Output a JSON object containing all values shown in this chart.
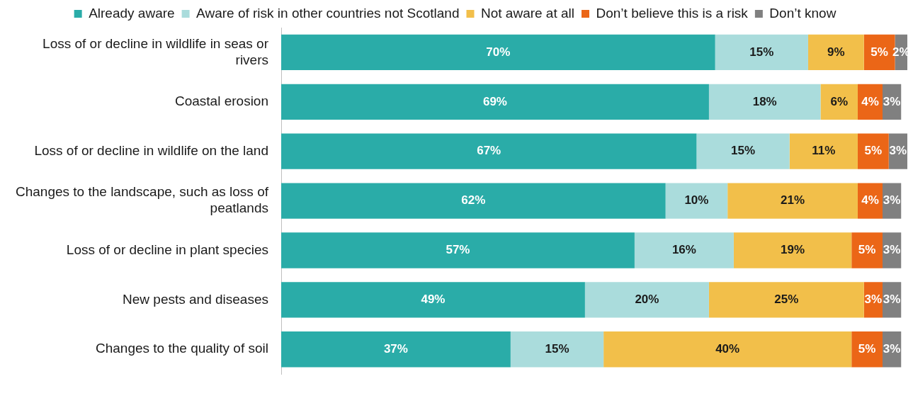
{
  "chart_data": {
    "type": "bar",
    "orientation": "horizontal",
    "stacked": true,
    "legend": "top",
    "categories": [
      "Loss of or decline in wildlife in seas or rivers",
      "Coastal erosion",
      "Loss of or decline in wildlife on the land",
      "Changes to the landscape, such as loss of peatlands",
      "Loss of or decline in plant species",
      "New pests and diseases",
      "Changes to the quality of soil"
    ],
    "series": [
      {
        "name": "Already aware",
        "color": "#2aaca8",
        "values": [
          70,
          69,
          67,
          62,
          57,
          49,
          37
        ],
        "value_labels": [
          "70%",
          "69%",
          "67%",
          "62%",
          "57%",
          "49%",
          "37%"
        ]
      },
      {
        "name": "Aware of risk in other countries not Scotland",
        "color": "#aadcdc",
        "values": [
          15,
          18,
          15,
          10,
          16,
          20,
          15
        ],
        "value_labels": [
          "15%",
          "18%",
          "15%",
          "10%",
          "16%",
          "20%",
          "15%"
        ]
      },
      {
        "name": "Not aware at all",
        "color": "#f2bf4a",
        "values": [
          9,
          6,
          11,
          21,
          19,
          25,
          40
        ],
        "value_labels": [
          "9%",
          "6%",
          "11%",
          "21%",
          "19%",
          "25%",
          "40%"
        ]
      },
      {
        "name": "Don’t believe this is a risk",
        "color": "#eb6617",
        "values": [
          5,
          4,
          5,
          4,
          5,
          3,
          5
        ],
        "value_labels": [
          "5%",
          "4%",
          "5%",
          "4%",
          "5%",
          "3%",
          "5%"
        ]
      },
      {
        "name": "Don’t know",
        "color": "#808080",
        "values": [
          2,
          3,
          3,
          3,
          3,
          3,
          3
        ],
        "value_labels": [
          "2%",
          "3%",
          "3%",
          "3%",
          "3%",
          "3%",
          "3%"
        ]
      }
    ]
  }
}
